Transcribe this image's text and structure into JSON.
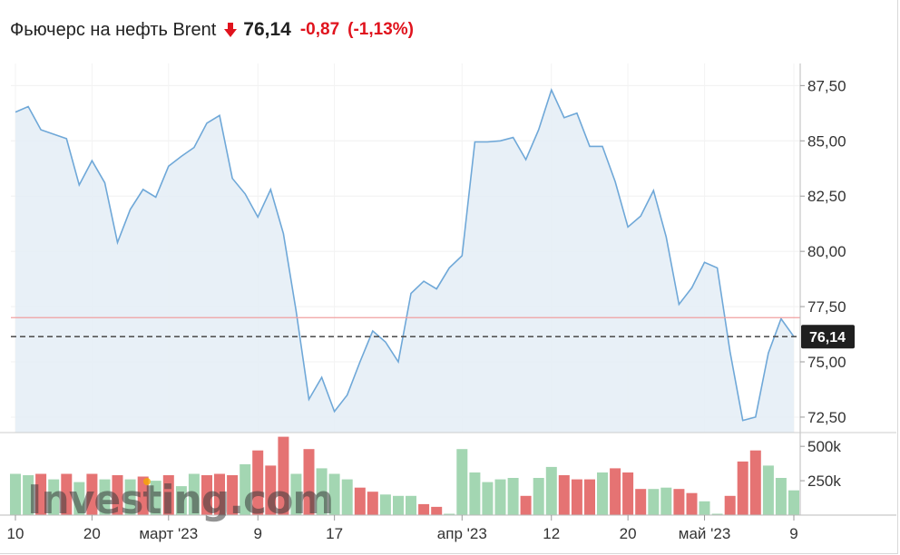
{
  "header": {
    "title": "Фьючерс на нефть Brent",
    "price": "76,14",
    "change": "-0,87",
    "change_pct": "(-1,13%)",
    "direction_icon": "arrow-down-icon"
  },
  "colors": {
    "line": "#6fa8d8",
    "area": "#e4edf6",
    "ref_line": "#f0a0a0",
    "last_price_line": "#555555",
    "badge_bg": "#1f1f1f",
    "volume_up": "#a3d6b2",
    "volume_down": "#e57373",
    "down_text": "#e0131d"
  },
  "watermark": "Investing.com",
  "chart_data": [
    {
      "type": "area",
      "title": "Фьючерс на нефть Brent",
      "y_ticks": [
        "87,50",
        "85,00",
        "82,50",
        "80,00",
        "77,50",
        "75,00",
        "72,50"
      ],
      "y_tick_values": [
        87.5,
        85.0,
        82.5,
        80.0,
        77.5,
        75.0,
        72.5
      ],
      "ylim": [
        71.8,
        88.5
      ],
      "x_ticks": [
        "10",
        "20",
        "март '23",
        "9",
        "17",
        "апр '23",
        "12",
        "20",
        "май '23",
        "9"
      ],
      "x_tick_index": [
        0,
        6,
        12,
        19,
        25,
        35,
        42,
        48,
        54,
        61
      ],
      "reference_level": 77.0,
      "last_price": 76.14,
      "last_price_label": "76,14",
      "values": [
        86.3,
        86.55,
        85.5,
        85.3,
        85.1,
        83.0,
        84.1,
        83.1,
        80.4,
        81.9,
        82.8,
        82.45,
        83.85,
        84.3,
        84.7,
        85.8,
        86.15,
        83.3,
        82.6,
        81.55,
        82.8,
        80.8,
        77.3,
        73.3,
        74.3,
        72.75,
        73.5,
        75.0,
        76.4,
        75.9,
        75.0,
        78.1,
        78.65,
        78.3,
        79.25,
        79.8,
        84.95,
        84.95,
        85.0,
        85.15,
        84.15,
        85.5,
        87.3,
        86.05,
        86.25,
        84.75,
        84.75,
        83.15,
        81.1,
        81.6,
        82.75,
        80.65,
        77.6,
        78.35,
        79.5,
        79.25,
        75.45,
        72.35,
        72.5,
        75.4,
        76.95,
        76.14
      ]
    },
    {
      "type": "bar",
      "title": "",
      "y_ticks": [
        "500k",
        "250k"
      ],
      "y_tick_values": [
        500000,
        250000
      ],
      "ylim": [
        0,
        600000
      ],
      "values": [
        300000,
        290000,
        300000,
        260000,
        300000,
        240000,
        300000,
        260000,
        290000,
        260000,
        280000,
        250000,
        290000,
        210000,
        300000,
        290000,
        300000,
        290000,
        370000,
        470000,
        360000,
        570000,
        300000,
        480000,
        340000,
        300000,
        260000,
        200000,
        170000,
        150000,
        140000,
        140000,
        80000,
        60000,
        10000,
        480000,
        310000,
        240000,
        260000,
        270000,
        140000,
        270000,
        350000,
        290000,
        260000,
        260000,
        310000,
        340000,
        310000,
        190000,
        190000,
        200000,
        190000,
        160000,
        100000,
        10000,
        140000,
        390000,
        470000,
        360000,
        270000,
        180000
      ],
      "direction": [
        "up",
        "up",
        "down",
        "up",
        "down",
        "up",
        "down",
        "up",
        "down",
        "up",
        "down",
        "up",
        "down",
        "up",
        "up",
        "down",
        "down",
        "down",
        "up",
        "down",
        "down",
        "down",
        "up",
        "down",
        "up",
        "up",
        "up",
        "down",
        "down",
        "up",
        "up",
        "up",
        "down",
        "down",
        "up",
        "up",
        "up",
        "up",
        "up",
        "up",
        "down",
        "up",
        "up",
        "down",
        "down",
        "down",
        "up",
        "down",
        "down",
        "down",
        "up",
        "up",
        "down",
        "down",
        "up",
        "up",
        "down",
        "down",
        "down",
        "up",
        "up",
        "up"
      ]
    }
  ]
}
